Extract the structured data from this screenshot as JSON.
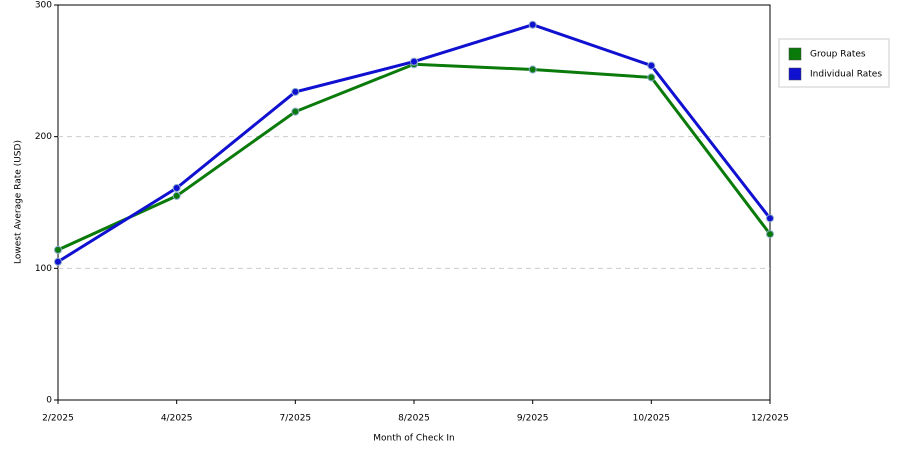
{
  "chart_data": {
    "type": "line",
    "x_label": "Month of Check In",
    "y_label": "Lowest Average Rate (USD)",
    "categories": [
      "2/2025",
      "4/2025",
      "7/2025",
      "8/2025",
      "9/2025",
      "10/2025",
      "12/2025"
    ],
    "series": [
      {
        "name": "Group Rates",
        "color": "#0a7a0a",
        "values": [
          114,
          155,
          219,
          255,
          251,
          245,
          126
        ]
      },
      {
        "name": "Individual Rates",
        "color": "#1010d0",
        "values": [
          105,
          161,
          234,
          257,
          285,
          254,
          138
        ]
      }
    ],
    "ylim": [
      0,
      300
    ],
    "yticks": [
      0,
      100,
      200,
      300
    ],
    "grid": true,
    "legend": "right"
  }
}
